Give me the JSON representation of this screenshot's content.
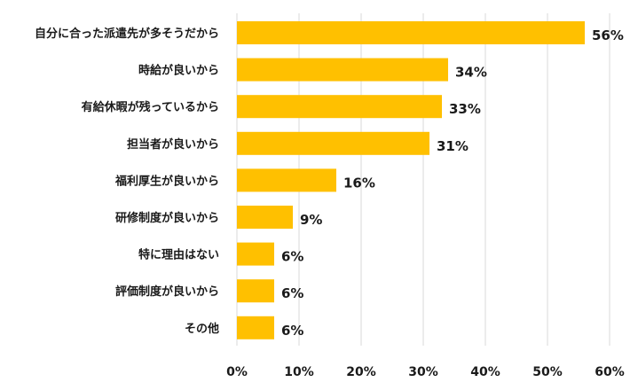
{
  "chart_data": {
    "type": "bar",
    "orientation": "horizontal",
    "title": "",
    "xlabel": "",
    "ylabel": "",
    "categories": [
      "自分に合った派遣先が多そうだから",
      "時給が良いから",
      "有給休暇が残っているから",
      "担当者が良いから",
      "福利厚生が良いから",
      "研修制度が良いから",
      "特に理由はない",
      "評価制度が良いから",
      "その他"
    ],
    "values": [
      56,
      34,
      33,
      31,
      16,
      9,
      6,
      6,
      6
    ],
    "value_labels": [
      "56%",
      "34%",
      "33%",
      "31%",
      "16%",
      "9%",
      "6%",
      "6%",
      "6%"
    ],
    "xlim": [
      0,
      60
    ],
    "xticks": [
      0,
      10,
      20,
      30,
      40,
      50,
      60
    ],
    "xtick_labels": [
      "0%",
      "10%",
      "20%",
      "30%",
      "40%",
      "50%",
      "60%"
    ],
    "grid": "vertical",
    "legend": "none",
    "bar_color": "#FFC000"
  }
}
